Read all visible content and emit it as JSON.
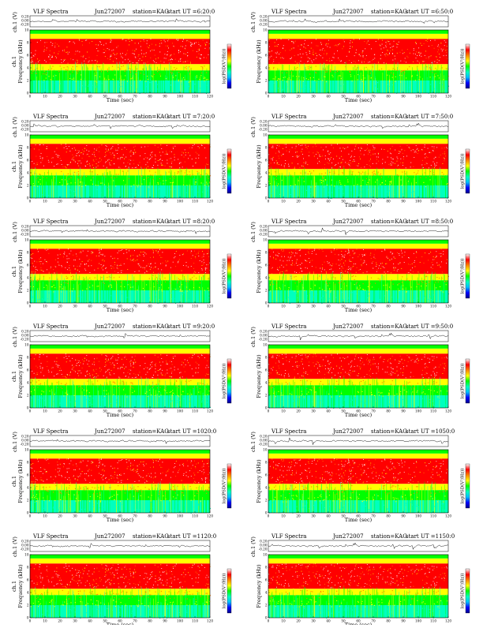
{
  "page": {
    "title": "VLF Spectra panels, station KAG, Jun 27 2007"
  },
  "colors": {
    "scale": [
      "#00008b",
      "#0000ff",
      "#00bfff",
      "#00ffbf",
      "#00ff00",
      "#ffff00",
      "#ff8000",
      "#ff0000",
      "#ffffff"
    ]
  },
  "chart_data": [
    {
      "type": "heatmap",
      "header": {
        "left": "VLF Spectra",
        "date": "Jun272007",
        "station": "station=KAG",
        "start": "start  UT =6:20:0"
      },
      "trace_label": "ch.1 (V)",
      "trace_ticks": [
        "0.20",
        "0.00",
        "-0.20"
      ],
      "ylabel": "Frequency  (kHz)",
      "ylabel_prefix": "ch.1",
      "yticks": [
        "0",
        "2",
        "4",
        "6",
        "8",
        "10"
      ],
      "ylim": [
        0,
        10
      ],
      "xlabel": "Time  (sec)",
      "xticks": [
        "0",
        "10",
        "20",
        "30",
        "40",
        "50",
        "60",
        "70",
        "80",
        "90",
        "100",
        "110",
        "120"
      ],
      "xlim": [
        0,
        120
      ],
      "colorbar_label": "log(PSD(V²/Hz))"
    },
    {
      "type": "heatmap",
      "header": {
        "left": "VLF Spectra",
        "date": "Jun272007",
        "station": "station=KAG",
        "start": "start  UT =6:50:0"
      },
      "trace_label": "ch.1 (V)",
      "trace_ticks": [
        "0.20",
        "0.00",
        "-0.20"
      ],
      "ylabel": "Frequency  (kHz)",
      "ylabel_prefix": "",
      "yticks": [
        "0",
        "2",
        "4",
        "6",
        "8",
        "10"
      ],
      "ylim": [
        0,
        10
      ],
      "xlabel": "Time  (sec)",
      "xticks": [
        "0",
        "10",
        "20",
        "30",
        "40",
        "50",
        "60",
        "70",
        "80",
        "90",
        "100",
        "110",
        "120"
      ],
      "xlim": [
        0,
        120
      ],
      "colorbar_label": "log(PSD(V²/Hz))"
    },
    {
      "type": "heatmap",
      "header": {
        "left": "VLF Spectra",
        "date": "Jun272007",
        "station": "station=KAG",
        "start": "start  UT =7:20:0"
      },
      "trace_label": "ch.1 (V)",
      "trace_ticks": [
        "0.20",
        "0.00",
        "-0.20"
      ],
      "ylabel": "Frequency  (kHz)",
      "ylabel_prefix": "ch.1",
      "yticks": [
        "0",
        "2",
        "4",
        "6",
        "8",
        "10"
      ],
      "ylim": [
        0,
        10
      ],
      "xlabel": "Time  (sec)",
      "xticks": [
        "0",
        "10",
        "20",
        "30",
        "40",
        "50",
        "60",
        "70",
        "80",
        "90",
        "100",
        "110",
        "120"
      ],
      "xlim": [
        0,
        120
      ],
      "colorbar_label": "log(PSD(V²/Hz))"
    },
    {
      "type": "heatmap",
      "header": {
        "left": "VLF Spectra",
        "date": "Jun272007",
        "station": "station=KAG",
        "start": "start  UT =7:50:0"
      },
      "trace_label": "ch.1 (V)",
      "trace_ticks": [
        "0.20",
        "0.00",
        "-0.20"
      ],
      "ylabel": "Frequency  (kHz)",
      "ylabel_prefix": "",
      "yticks": [
        "0",
        "2",
        "4",
        "6",
        "8",
        "10"
      ],
      "ylim": [
        0,
        10
      ],
      "xlabel": "Time  (sec)",
      "xticks": [
        "0",
        "10",
        "20",
        "30",
        "40",
        "50",
        "60",
        "70",
        "80",
        "90",
        "100",
        "110",
        "120"
      ],
      "xlim": [
        0,
        120
      ],
      "colorbar_label": "log(PSD(V²/Hz))"
    },
    {
      "type": "heatmap",
      "header": {
        "left": "VLF Spectra",
        "date": "Jun272007",
        "station": "station=KAG",
        "start": "start  UT =8:20:0"
      },
      "trace_label": "ch.1 (V)",
      "trace_ticks": [
        "0.20",
        "0.00",
        "-0.20"
      ],
      "ylabel": "Frequency  (kHz)",
      "ylabel_prefix": "ch.1",
      "yticks": [
        "0",
        "2",
        "4",
        "6",
        "8",
        "10"
      ],
      "ylim": [
        0,
        10
      ],
      "xlabel": "Time  (sec)",
      "xticks": [
        "0",
        "10",
        "20",
        "30",
        "40",
        "50",
        "60",
        "70",
        "80",
        "90",
        "100",
        "110",
        "120"
      ],
      "xlim": [
        0,
        120
      ],
      "colorbar_label": "log(PSD(V²/Hz))"
    },
    {
      "type": "heatmap",
      "header": {
        "left": "VLF Spectra",
        "date": "Jun272007",
        "station": "station=KAG",
        "start": "start  UT =8:50:0"
      },
      "trace_label": "ch.1 (V)",
      "trace_ticks": [
        "0.20",
        "0.00",
        "-0.20"
      ],
      "ylabel": "Frequency  (kHz)",
      "ylabel_prefix": "",
      "yticks": [
        "0",
        "2",
        "4",
        "6",
        "8",
        "10"
      ],
      "ylim": [
        0,
        10
      ],
      "xlabel": "Time  (sec)",
      "xticks": [
        "0",
        "10",
        "20",
        "30",
        "40",
        "50",
        "60",
        "70",
        "80",
        "90",
        "100",
        "110",
        "120"
      ],
      "xlim": [
        0,
        120
      ],
      "colorbar_label": "log(PSD(V²/Hz))"
    },
    {
      "type": "heatmap",
      "header": {
        "left": "VLF Spectra",
        "date": "Jun272007",
        "station": "station=KAG",
        "start": "start  UT =9:20:0"
      },
      "trace_label": "ch.1 (V)",
      "trace_ticks": [
        "0.20",
        "0.00",
        "-0.20"
      ],
      "ylabel": "Frequency  (kHz)",
      "ylabel_prefix": "ch.1",
      "yticks": [
        "0",
        "2",
        "4",
        "6",
        "8",
        "10"
      ],
      "ylim": [
        0,
        10
      ],
      "xlabel": "Time  (sec)",
      "xticks": [
        "0",
        "10",
        "20",
        "30",
        "40",
        "50",
        "60",
        "70",
        "80",
        "90",
        "100",
        "110",
        "120"
      ],
      "xlim": [
        0,
        120
      ],
      "colorbar_label": "log(PSD(V²/Hz))"
    },
    {
      "type": "heatmap",
      "header": {
        "left": "VLF Spectra",
        "date": "Jun272007",
        "station": "station=KAG",
        "start": "start  UT =9:50:0"
      },
      "trace_label": "ch.1 (V)",
      "trace_ticks": [
        "0.20",
        "0.00",
        "-0.20"
      ],
      "ylabel": "Frequency  (kHz)",
      "ylabel_prefix": "",
      "yticks": [
        "0",
        "2",
        "4",
        "6",
        "8",
        "10"
      ],
      "ylim": [
        0,
        10
      ],
      "xlabel": "Time  (sec)",
      "xticks": [
        "0",
        "10",
        "20",
        "30",
        "40",
        "50",
        "60",
        "70",
        "80",
        "90",
        "100",
        "110",
        "120"
      ],
      "xlim": [
        0,
        120
      ],
      "colorbar_label": "log(PSD(V²/Hz))"
    },
    {
      "type": "heatmap",
      "header": {
        "left": "VLF Spectra",
        "date": "Jun272007",
        "station": "station=KAG",
        "start": "start  UT =1020:0"
      },
      "trace_label": "ch.1 (V)",
      "trace_ticks": [
        "0.20",
        "0.00",
        "-0.20"
      ],
      "ylabel": "Frequency  (kHz)",
      "ylabel_prefix": "ch.1",
      "yticks": [
        "0",
        "2",
        "4",
        "6",
        "8",
        "10"
      ],
      "ylim": [
        0,
        10
      ],
      "xlabel": "Time  (sec)",
      "xticks": [
        "0",
        "10",
        "20",
        "30",
        "40",
        "50",
        "60",
        "70",
        "80",
        "90",
        "100",
        "110",
        "120"
      ],
      "xlim": [
        0,
        120
      ],
      "colorbar_label": "log(PSD(V²/Hz))"
    },
    {
      "type": "heatmap",
      "header": {
        "left": "VLF Spectra",
        "date": "Jun272007",
        "station": "station=KAG",
        "start": "start  UT =1050:0"
      },
      "trace_label": "ch.1 (V)",
      "trace_ticks": [
        "0.20",
        "0.00",
        "-0.20"
      ],
      "ylabel": "Frequency  (kHz)",
      "ylabel_prefix": "",
      "yticks": [
        "0",
        "2",
        "4",
        "6",
        "8",
        "10"
      ],
      "ylim": [
        0,
        10
      ],
      "xlabel": "Time  (sec)",
      "xticks": [
        "0",
        "10",
        "20",
        "30",
        "40",
        "50",
        "60",
        "70",
        "80",
        "90",
        "100",
        "110",
        "120"
      ],
      "xlim": [
        0,
        120
      ],
      "colorbar_label": "log(PSD(V²/Hz))"
    },
    {
      "type": "heatmap",
      "header": {
        "left": "VLF Spectra",
        "date": "Jun272007",
        "station": "station=KAG",
        "start": "start  UT =1120:0"
      },
      "trace_label": "ch.1 (V)",
      "trace_ticks": [
        "0.20",
        "0.00",
        "-0.20"
      ],
      "ylabel": "Frequency  (kHz)",
      "ylabel_prefix": "ch.1",
      "yticks": [
        "0",
        "2",
        "4",
        "6",
        "8",
        "10"
      ],
      "ylim": [
        0,
        10
      ],
      "xlabel": "Time  (sec)",
      "xticks": [
        "0",
        "10",
        "20",
        "30",
        "40",
        "50",
        "60",
        "70",
        "80",
        "90",
        "100",
        "110",
        "120"
      ],
      "xlim": [
        0,
        120
      ],
      "colorbar_label": "log(PSD(V²/Hz))"
    },
    {
      "type": "heatmap",
      "header": {
        "left": "VLF Spectra",
        "date": "Jun272007",
        "station": "station=KAG",
        "start": "start  UT =1150:0"
      },
      "trace_label": "ch.1 (V)",
      "trace_ticks": [
        "0.20",
        "0.00",
        "-0.20"
      ],
      "ylabel": "Frequency  (kHz)",
      "ylabel_prefix": "",
      "yticks": [
        "0",
        "2",
        "4",
        "6",
        "8",
        "10"
      ],
      "ylim": [
        0,
        10
      ],
      "xlabel": "Time  (sec)",
      "xticks": [
        "0",
        "10",
        "20",
        "30",
        "40",
        "50",
        "60",
        "70",
        "80",
        "90",
        "100",
        "110",
        "120"
      ],
      "xlim": [
        0,
        120
      ],
      "colorbar_label": "log(PSD(V²/Hz))"
    }
  ]
}
